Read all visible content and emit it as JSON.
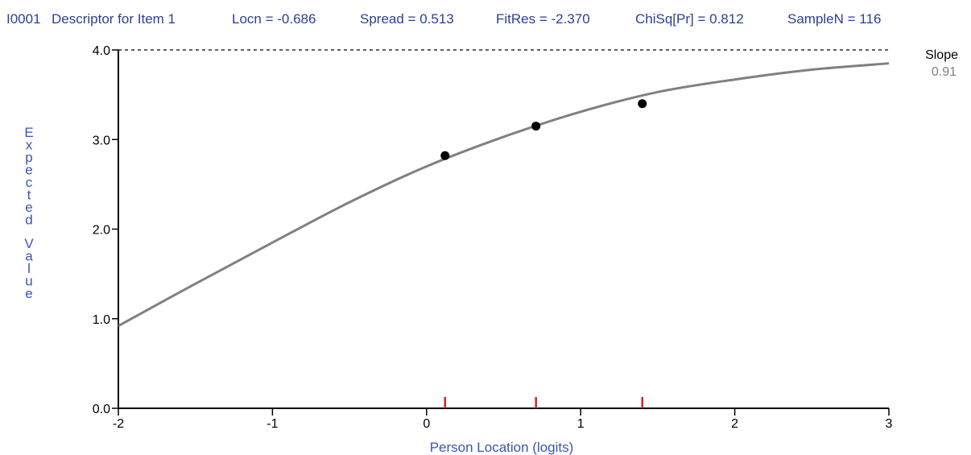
{
  "header": {
    "item_id": "I0001",
    "descriptor": "Descriptor for Item 1",
    "locn": "Locn = -0.686",
    "spread": "Spread = 0.513",
    "fitres": "FitRes = -2.370",
    "chisq": "ChiSq[Pr] = 0.812",
    "samplen": "SampleN = 116"
  },
  "slope": {
    "label": "Slope",
    "value": "0.91"
  },
  "colors": {
    "header_text": "#2b3f9a",
    "axis_label": "#3a55b4",
    "curve": "#808080",
    "marker": "#000000",
    "class_tick": "#e02020",
    "axis": "#000000"
  },
  "chart_data": {
    "type": "line",
    "xlabel": "Person Location (logits)",
    "ylabel": "Expected Value",
    "xlim": [
      -2,
      3
    ],
    "ylim": [
      0,
      4
    ],
    "x_ticks": [
      -2,
      -1,
      0,
      1,
      2,
      3
    ],
    "y_ticks": [
      0,
      1,
      2,
      3,
      4
    ],
    "y_tick_labels": [
      "0.0",
      "1.0",
      "2.0",
      "3.0",
      "4.0"
    ],
    "max_reference_line": 4.0,
    "expected_curve": {
      "x": [
        -2,
        -1.5,
        -1,
        -0.5,
        0,
        0.5,
        1,
        1.5,
        2,
        2.5,
        3
      ],
      "y": [
        0.92,
        1.39,
        1.85,
        2.3,
        2.7,
        3.03,
        3.31,
        3.53,
        3.67,
        3.78,
        3.85
      ]
    },
    "observed_means": {
      "x": [
        0.12,
        0.71,
        1.4
      ],
      "y": [
        2.82,
        3.15,
        3.4
      ]
    },
    "class_interval_ticks": [
      0.12,
      0.71,
      1.4
    ]
  }
}
